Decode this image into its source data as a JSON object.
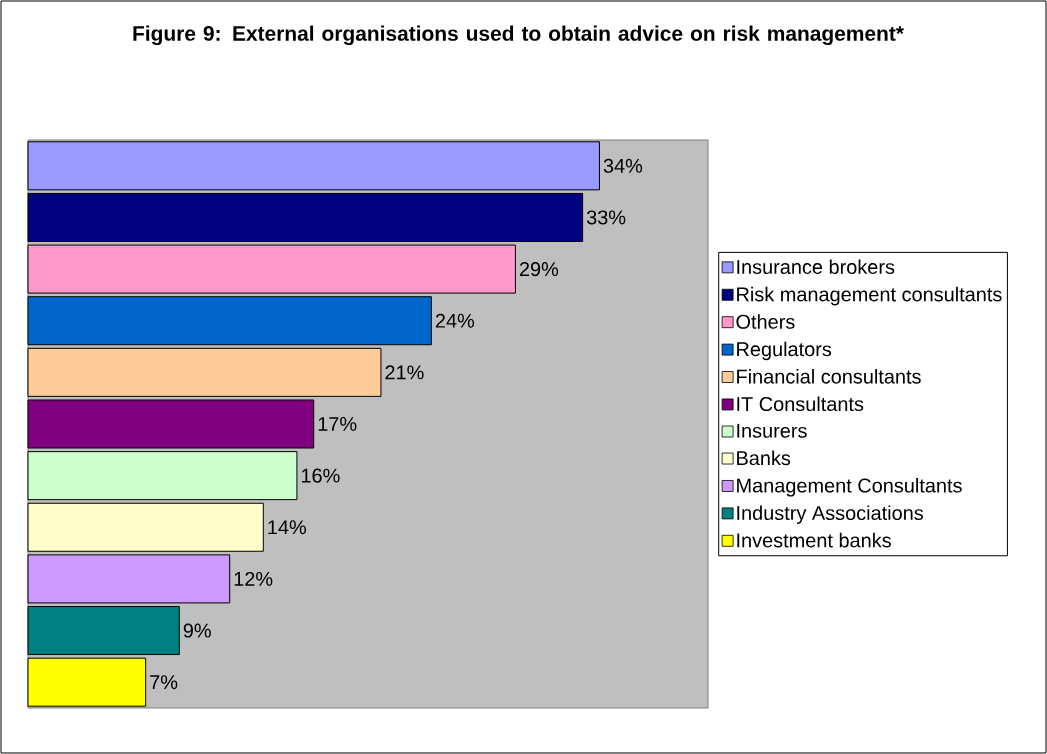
{
  "chart_data": {
    "type": "bar",
    "orientation": "horizontal",
    "stacked": true,
    "title": "Figure 9: External organisations used to obtain advice on risk management*",
    "categories": [
      null,
      null,
      null,
      null,
      null,
      null,
      null,
      null,
      null,
      null,
      null
    ],
    "series": [
      {
        "name": "Insurance brokers",
        "color": "#9999ff",
        "values": [
          34,
          null,
          null,
          null,
          null,
          null,
          null,
          null,
          null,
          null,
          null
        ],
        "value_labels": [
          "34%",
          null,
          null,
          null,
          null,
          null,
          null,
          null,
          null,
          null,
          null
        ]
      },
      {
        "name": "Risk management consultants",
        "color": "#000080",
        "values": [
          null,
          33,
          null,
          null,
          null,
          null,
          null,
          null,
          null,
          null,
          null
        ],
        "value_labels": [
          null,
          "33%",
          null,
          null,
          null,
          null,
          null,
          null,
          null,
          null,
          null
        ]
      },
      {
        "name": "Others",
        "color": "#ff99cc",
        "values": [
          null,
          null,
          29,
          null,
          null,
          null,
          null,
          null,
          null,
          null,
          null
        ],
        "value_labels": [
          null,
          null,
          "29%",
          null,
          null,
          null,
          null,
          null,
          null,
          null,
          null
        ]
      },
      {
        "name": "Regulators",
        "color": "#0066cc",
        "values": [
          null,
          null,
          null,
          24,
          null,
          null,
          null,
          null,
          null,
          null,
          null
        ],
        "value_labels": [
          null,
          null,
          null,
          "24%",
          null,
          null,
          null,
          null,
          null,
          null,
          null
        ]
      },
      {
        "name": "Financial consultants",
        "color": "#ffcc99",
        "values": [
          null,
          null,
          null,
          null,
          21,
          null,
          null,
          null,
          null,
          null,
          null
        ],
        "value_labels": [
          null,
          null,
          null,
          null,
          "21%",
          null,
          null,
          null,
          null,
          null,
          null
        ]
      },
      {
        "name": "IT Consultants",
        "color": "#800080",
        "values": [
          null,
          null,
          null,
          null,
          null,
          17,
          null,
          null,
          null,
          null,
          null
        ],
        "value_labels": [
          null,
          null,
          null,
          null,
          null,
          "17%",
          null,
          null,
          null,
          null,
          null
        ]
      },
      {
        "name": "Insurers",
        "color": "#ccffcc",
        "values": [
          null,
          null,
          null,
          null,
          null,
          null,
          16,
          null,
          null,
          null,
          null
        ],
        "value_labels": [
          null,
          null,
          null,
          null,
          null,
          null,
          "16%",
          null,
          null,
          null,
          null
        ]
      },
      {
        "name": "Banks",
        "color": "#ffffcc",
        "values": [
          null,
          null,
          null,
          null,
          null,
          null,
          null,
          14,
          null,
          null,
          null
        ],
        "value_labels": [
          null,
          null,
          null,
          null,
          null,
          null,
          null,
          "14%",
          null,
          null,
          null
        ]
      },
      {
        "name": "Management Consultants",
        "color": "#cc99ff",
        "values": [
          null,
          null,
          null,
          null,
          null,
          null,
          null,
          null,
          12,
          null,
          null
        ],
        "value_labels": [
          null,
          null,
          null,
          null,
          null,
          null,
          null,
          null,
          "12%",
          null,
          null
        ]
      },
      {
        "name": "Industry Associations",
        "color": "#008080",
        "values": [
          null,
          null,
          null,
          null,
          null,
          null,
          null,
          null,
          null,
          9,
          null
        ],
        "value_labels": [
          null,
          null,
          null,
          null,
          null,
          null,
          null,
          null,
          null,
          "9%",
          null
        ]
      },
      {
        "name": "Investment banks",
        "color": "#ffff00",
        "values": [
          null,
          null,
          null,
          null,
          null,
          null,
          null,
          null,
          null,
          null,
          7
        ],
        "value_labels": [
          null,
          null,
          null,
          null,
          null,
          null,
          null,
          null,
          null,
          null,
          "7%"
        ]
      }
    ],
    "legend": "right"
  }
}
